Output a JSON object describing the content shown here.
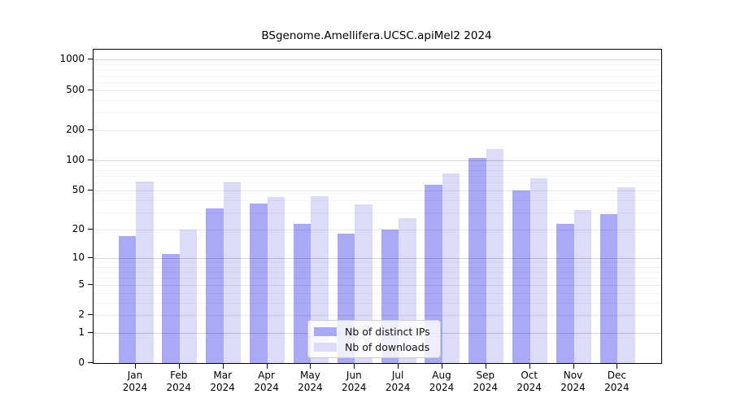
{
  "chart_data": {
    "type": "bar",
    "title": "BSgenome.Amellifera.UCSC.apiMel2 2024",
    "year": "2024",
    "months": [
      "Jan",
      "Feb",
      "Mar",
      "Apr",
      "May",
      "Jun",
      "Jul",
      "Aug",
      "Sep",
      "Oct",
      "Nov",
      "Dec"
    ],
    "categories": [
      "Jan 2024",
      "Feb 2024",
      "Mar 2024",
      "Apr 2024",
      "May 2024",
      "Jun 2024",
      "Jul 2024",
      "Aug 2024",
      "Sep 2024",
      "Oct 2024",
      "Nov 2024",
      "Dec 2024"
    ],
    "series": [
      {
        "name": "Nb of distinct IPs",
        "color": "#a9a9f5",
        "values": [
          17,
          11,
          33,
          37,
          23,
          18,
          20,
          57,
          106,
          50,
          23,
          29
        ]
      },
      {
        "name": "Nb of downloads",
        "color": "#dcdcf9",
        "values": [
          62,
          20,
          61,
          43,
          44,
          36,
          26,
          74,
          131,
          66,
          32,
          54
        ]
      }
    ],
    "y_scale": "log1p",
    "y_ticks": [
      0,
      1,
      2,
      5,
      10,
      20,
      50,
      100,
      200,
      500,
      1000
    ],
    "ylim": [
      0,
      1000
    ],
    "grid": true,
    "legend_position": "inside bottom-center",
    "xlabel": "",
    "ylabel": ""
  }
}
